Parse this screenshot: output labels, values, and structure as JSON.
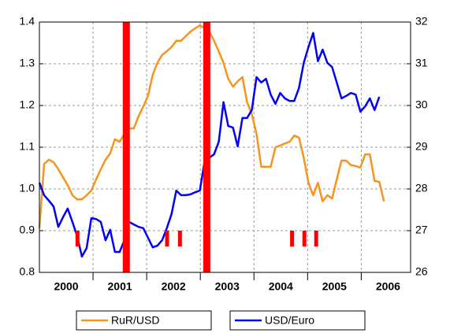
{
  "chart_data": {
    "type": "line",
    "x": [
      2000,
      2000.088,
      2000.176,
      2000.264,
      2000.352,
      2000.44,
      2000.528,
      2000.616,
      2000.704,
      2000.792,
      2000.88,
      2000.968,
      2001.056,
      2001.144,
      2001.232,
      2001.32,
      2001.408,
      2001.496,
      2001.584,
      2001.672,
      2001.76,
      2001.848,
      2001.936,
      2002.024,
      2002.112,
      2002.2,
      2002.288,
      2002.376,
      2002.464,
      2002.552,
      2002.64,
      2002.728,
      2002.816,
      2002.904,
      2002.992,
      2003.08,
      2003.168,
      2003.256,
      2003.344,
      2003.432,
      2003.52,
      2003.608,
      2003.696,
      2003.784,
      2003.872,
      2003.96,
      2004.048,
      2004.136,
      2004.224,
      2004.312,
      2004.4,
      2004.488,
      2004.576,
      2004.664,
      2004.752,
      2004.84,
      2004.928,
      2005.016,
      2005.104,
      2005.192,
      2005.28,
      2005.368,
      2005.456,
      2005.544,
      2005.632,
      2005.72,
      2005.808,
      2005.896,
      2005.984,
      2006.072,
      2006.16,
      2006.248,
      2006.336,
      2006.424
    ],
    "series": [
      {
        "name": "RuR/USD",
        "color": "#f7941d",
        "axis": "y",
        "values": [
          0.906,
          1.06,
          1.07,
          1.064,
          1.047,
          1.028,
          1.009,
          0.985,
          0.975,
          0.975,
          0.985,
          0.996,
          1.023,
          1.047,
          1.07,
          1.085,
          1.119,
          1.113,
          1.132,
          1.145,
          1.145,
          1.174,
          1.198,
          1.223,
          1.274,
          1.302,
          1.321,
          1.33,
          1.34,
          1.355,
          1.355,
          1.366,
          1.377,
          1.385,
          1.392,
          1.385,
          1.377,
          1.355,
          1.33,
          1.302,
          1.264,
          1.245,
          1.258,
          1.268,
          1.208,
          1.179,
          1.132,
          1.053,
          1.053,
          1.053,
          1.1,
          1.104,
          1.109,
          1.113,
          1.128,
          1.123,
          1.075,
          1.015,
          0.985,
          1.015,
          0.97,
          0.985,
          0.977,
          1.023,
          1.068,
          1.068,
          1.057,
          1.055,
          1.051,
          1.083,
          1.083,
          1.019,
          1.017,
          0.97
        ]
      },
      {
        "name": "USD/Euro",
        "color": "#0000ff",
        "axis": "y2",
        "values": [
          28.15,
          27.85,
          27.72,
          27.58,
          27.09,
          27.32,
          27.53,
          27.21,
          26.87,
          26.38,
          26.58,
          27.3,
          27.28,
          27.21,
          26.77,
          27.02,
          26.49,
          26.49,
          26.77,
          27.21,
          27.15,
          27.09,
          27.06,
          26.83,
          26.6,
          26.64,
          26.77,
          27.06,
          27.4,
          27.96,
          27.85,
          27.85,
          27.87,
          27.92,
          27.96,
          28.66,
          28.75,
          28.83,
          29.13,
          30.08,
          29.51,
          29.47,
          29.02,
          29.7,
          29.7,
          29.89,
          30.68,
          30.55,
          30.64,
          30.26,
          30.04,
          30.3,
          30.17,
          30.11,
          30.11,
          30.42,
          31.02,
          31.4,
          31.74,
          31.06,
          31.34,
          31.02,
          30.92,
          30.55,
          30.17,
          30.23,
          30.3,
          30.26,
          29.85,
          29.98,
          30.17,
          29.89,
          30.21,
          null
        ]
      }
    ],
    "event_bars": {
      "color": "#ff0000",
      "bars": [
        {
          "x": 2001.62,
          "from": 0.8,
          "to": 1.4
        },
        {
          "x": 2003.12,
          "from": 0.8,
          "to": 1.4
        },
        {
          "x": 2000.71,
          "from": 0.862,
          "to": 0.9
        },
        {
          "x": 2002.38,
          "from": 0.862,
          "to": 0.9
        },
        {
          "x": 2002.62,
          "from": 0.862,
          "to": 0.9
        },
        {
          "x": 2004.71,
          "from": 0.862,
          "to": 0.9
        },
        {
          "x": 2004.94,
          "from": 0.862,
          "to": 0.9
        },
        {
          "x": 2005.16,
          "from": 0.862,
          "to": 0.9
        }
      ]
    },
    "xlim": [
      2000,
      2006.92
    ],
    "xticks": [
      {
        "value": 2000.5,
        "label": "2000"
      },
      {
        "value": 2001.5,
        "label": "2001"
      },
      {
        "value": 2002.5,
        "label": "2002"
      },
      {
        "value": 2003.5,
        "label": "2003"
      },
      {
        "value": 2004.5,
        "label": "2004"
      },
      {
        "value": 2005.5,
        "label": "2005"
      },
      {
        "value": 2006.5,
        "label": "2006"
      }
    ],
    "xgrid": [
      2001,
      2002,
      2003,
      2004,
      2005,
      2006
    ],
    "ylim": [
      0.8,
      1.4
    ],
    "yticks": [
      {
        "value": 0.8,
        "label": "0.8"
      },
      {
        "value": 0.9,
        "label": "0.9"
      },
      {
        "value": 1.0,
        "label": "1.0"
      },
      {
        "value": 1.1,
        "label": "1.1"
      },
      {
        "value": 1.2,
        "label": "1.2"
      },
      {
        "value": 1.3,
        "label": "1.3"
      },
      {
        "value": 1.4,
        "label": "1.4"
      }
    ],
    "y2lim": [
      26,
      32
    ],
    "y2ticks": [
      26,
      27,
      28,
      29,
      30,
      31,
      32
    ],
    "grid": true
  }
}
